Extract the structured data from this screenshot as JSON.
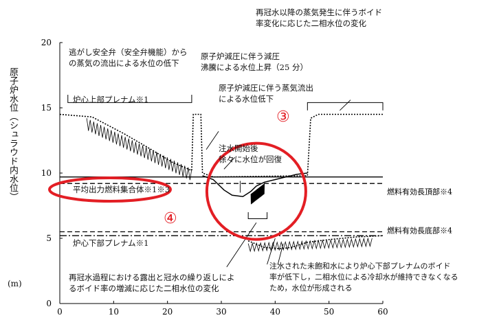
{
  "chart_data": {
    "type": "line",
    "ylabel": "原子炉水位（シュラウド内水位）",
    "yunit": "(m)",
    "xlim": [
      0,
      60
    ],
    "ylim": [
      0,
      20
    ],
    "xticks": [
      "0",
      "10",
      "20",
      "30",
      "40",
      "50",
      "60"
    ],
    "yticks": [
      "0",
      "5",
      "10",
      "15",
      "20"
    ],
    "series": [
      {
        "style": "dotted",
        "values": [
          [
            0,
            14.5
          ],
          [
            6,
            14.3
          ],
          [
            12,
            13.0
          ],
          [
            17,
            11.8
          ],
          [
            21,
            10.8
          ],
          [
            24.5,
            10.2
          ],
          [
            24.8,
            14.5
          ],
          [
            26.2,
            14.5
          ],
          [
            26.5,
            10.0
          ],
          [
            28.5,
            9.7
          ],
          [
            46,
            9.8
          ],
          [
            46.6,
            14.2
          ],
          [
            48,
            14.5
          ],
          [
            60,
            14.5
          ]
        ]
      },
      {
        "style": "solid",
        "values": [
          [
            26.5,
            9.8
          ],
          [
            28.5,
            9.5
          ],
          [
            30.5,
            8.7
          ],
          [
            32,
            8.3
          ],
          [
            34,
            8.2
          ],
          [
            35.5,
            8.6
          ],
          [
            36.5,
            9.0
          ],
          [
            38,
            9.3
          ],
          [
            40,
            9.5
          ],
          [
            42,
            9.7
          ],
          [
            44,
            9.9
          ],
          [
            46,
            10.0
          ]
        ]
      },
      {
        "style": "dotted",
        "values": [
          [
            35,
            4.8
          ],
          [
            38,
            4.3
          ],
          [
            41,
            4.2
          ],
          [
            43,
            4.3
          ],
          [
            46,
            4.7
          ],
          [
            50,
            4.9
          ],
          [
            55,
            5.1
          ],
          [
            60,
            5.2
          ]
        ]
      }
    ],
    "reference_lines": [
      {
        "y": 9.7,
        "style": "solid"
      },
      {
        "y": 9.2,
        "style": "dashed",
        "label": "燃料有効長頂部※4"
      },
      {
        "y": 5.5,
        "style": "dashed",
        "label": "燃料有効長底部※4"
      },
      {
        "y": 5.2,
        "style": "dash-dot"
      }
    ],
    "annotations": [
      {
        "text": "逃がし安全弁（安全弁機能）から"
      },
      {
        "text": "の蒸気の流出による水位の低下"
      },
      {
        "text": "炉心上部プレナム※1"
      },
      {
        "text": "原子炉減圧に伴う減圧"
      },
      {
        "text": "沸騰による水位上昇（25 分）"
      },
      {
        "text": "原子炉減圧に伴う蒸気流出"
      },
      {
        "text": "による水位低下"
      },
      {
        "text": "再冠水以降の蒸気発生に伴うボイド"
      },
      {
        "text": "率変化に応じた二相水位の変化"
      },
      {
        "text": "注水開始後"
      },
      {
        "text": "徐々に水位が回復"
      },
      {
        "text": "平均出力燃料集合体※1※3"
      },
      {
        "text": "炉心下部プレナム※1"
      },
      {
        "text": "再冠水過程における露出と冠水の繰り返しによ"
      },
      {
        "text": "るボイド率の増減に応じた二相水位の変化"
      },
      {
        "text": "注水された未飽和水により炉心下部プレナムのボイド"
      },
      {
        "text": "率が低下し，二相水位による冷却水が維持できなくなる"
      },
      {
        "text": "ため，水位が形成される"
      },
      {
        "text": "③"
      },
      {
        "text": "④"
      }
    ]
  }
}
